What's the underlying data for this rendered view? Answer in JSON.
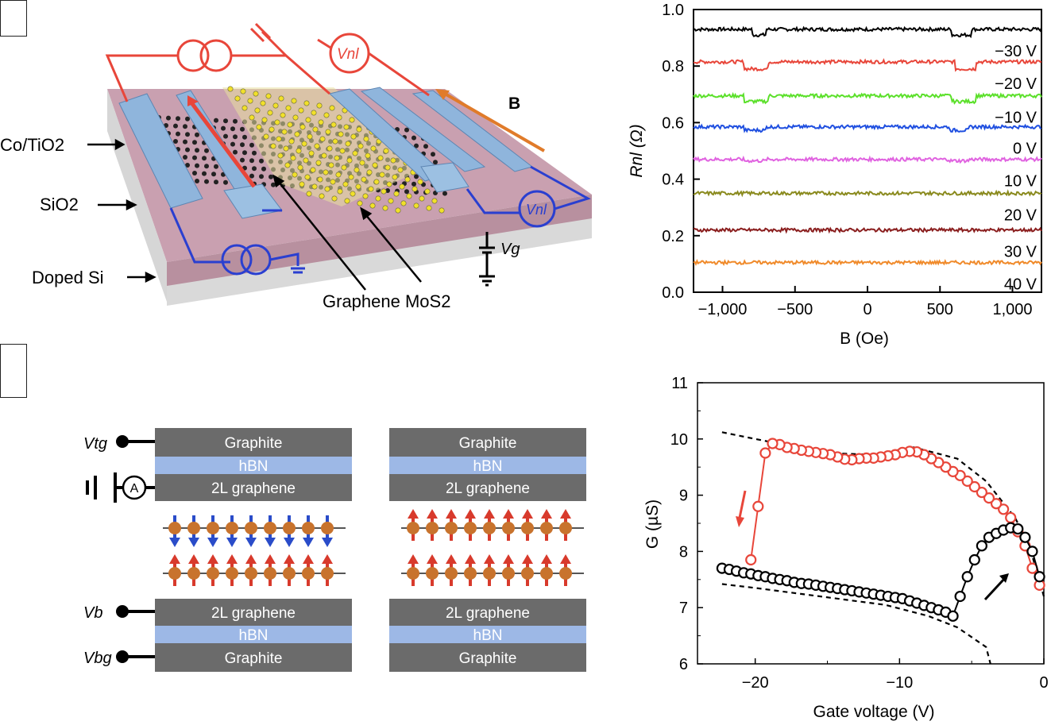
{
  "panel_a": {
    "labels": {
      "co_tio2": "Co/TiO2",
      "sio2": "SiO2",
      "doped_si": "Doped Si",
      "graphene_mos2": "Graphene MoS2",
      "b_field": "B",
      "vnl": "Vnl",
      "vg": "Vg"
    },
    "colors": {
      "red": "#e8463a",
      "blue": "#2a3fd0",
      "orange": "#e07b2a",
      "contact": "#8fb5dc",
      "substrate": "#c9a0b0"
    }
  },
  "panel_b": {
    "stack_labels": {
      "graphite_top": "Graphite",
      "hbn": "hBN",
      "graphene_2l": "2L graphene",
      "graphite_bottom": "Graphite"
    },
    "terminals": {
      "vtg": "Vtg",
      "vb": "Vb",
      "vbg": "Vbg",
      "ammeter": "A"
    },
    "colors": {
      "layer": "#6b6b6b",
      "hbn": "#9db8e6",
      "spin_up": "#d83a2c",
      "spin_down": "#2a4cc9",
      "ball": "#c8732d"
    }
  },
  "chart_data": [
    {
      "type": "line",
      "xlabel": "B (Oe)",
      "ylabel": "Rnl (Ω)",
      "xlim": [
        -1200,
        1200
      ],
      "ylim": [
        0.0,
        1.0
      ],
      "xticks": [
        -1000,
        -500,
        0,
        500,
        1000
      ],
      "xtick_labels": [
        "−1,000",
        "−500",
        "0",
        "500",
        "1,000"
      ],
      "yticks": [
        0.0,
        0.2,
        0.4,
        0.6,
        0.8,
        1.0
      ],
      "ytick_labels": [
        "0.0",
        "0.2",
        "0.4",
        "0.6",
        "0.8",
        "1.0"
      ],
      "series": [
        {
          "name": "−30 V",
          "color": "#000000",
          "base": 0.93,
          "dip": 0.02,
          "switch": [
            -800,
            -700,
            580,
            720
          ]
        },
        {
          "name": "−20 V",
          "color": "#e8463a",
          "base": 0.815,
          "dip": 0.025,
          "switch": [
            -850,
            -680,
            600,
            750
          ]
        },
        {
          "name": "−10 V",
          "color": "#5be02a",
          "base": 0.695,
          "dip": 0.02,
          "switch": [
            -850,
            -680,
            580,
            750
          ]
        },
        {
          "name": "0 V",
          "color": "#1f4fe0",
          "base": 0.585,
          "dip": 0.012,
          "switch": [
            -850,
            -700,
            560,
            700
          ]
        },
        {
          "name": "10 V",
          "color": "#e062e0",
          "base": 0.47,
          "dip": 0.005,
          "switch": [
            -850,
            -700,
            560,
            700
          ]
        },
        {
          "name": "20 V",
          "color": "#8a8a1e",
          "base": 0.35,
          "dip": 0.0,
          "switch": [
            -850,
            -700,
            560,
            700
          ]
        },
        {
          "name": "30 V",
          "color": "#8a1e1e",
          "base": 0.22,
          "dip": 0.0,
          "switch": [
            -850,
            -700,
            560,
            700
          ]
        },
        {
          "name": "40 V",
          "color": "#f08a2a",
          "base": 0.105,
          "dip": 0.0,
          "switch": [
            -850,
            -700,
            560,
            700
          ]
        }
      ]
    },
    {
      "type": "scatter",
      "xlabel": "Gate voltage (V)",
      "ylabel": "G (µS)",
      "xlim": [
        -24,
        0
      ],
      "ylim": [
        6,
        11
      ],
      "xticks": [
        -20,
        -10,
        0
      ],
      "xtick_labels": [
        "−20",
        "−10",
        "0"
      ],
      "yticks": [
        6,
        7,
        8,
        9,
        10,
        11
      ],
      "ytick_labels": [
        "6",
        "7",
        "8",
        "9",
        "10",
        "11"
      ],
      "series": [
        {
          "name": "sweep down",
          "color": "#e8463a",
          "x": [
            -0.3,
            -0.8,
            -1.3,
            -1.8,
            -2.3,
            -2.8,
            -3.3,
            -3.8,
            -4.3,
            -4.8,
            -5.3,
            -5.8,
            -6.3,
            -6.8,
            -7.3,
            -7.8,
            -8.3,
            -8.8,
            -9.3,
            -9.8,
            -10.3,
            -10.8,
            -11.3,
            -11.8,
            -12.3,
            -12.8,
            -13.3,
            -13.8,
            -14.3,
            -14.8,
            -15.3,
            -15.8,
            -16.3,
            -16.8,
            -17.3,
            -17.8,
            -18.3,
            -18.8,
            -19.3,
            -19.8,
            -20.3
          ],
          "y": [
            7.4,
            7.7,
            8.1,
            8.35,
            8.6,
            8.75,
            8.85,
            8.95,
            9.05,
            9.15,
            9.25,
            9.35,
            9.42,
            9.5,
            9.58,
            9.65,
            9.72,
            9.77,
            9.78,
            9.76,
            9.72,
            9.7,
            9.68,
            9.66,
            9.66,
            9.65,
            9.63,
            9.64,
            9.68,
            9.72,
            9.74,
            9.76,
            9.78,
            9.8,
            9.83,
            9.85,
            9.9,
            9.92,
            9.75,
            8.8,
            7.85
          ]
        },
        {
          "name": "sweep up",
          "color": "#000000",
          "x": [
            -22.3,
            -21.8,
            -21.3,
            -20.8,
            -20.3,
            -19.8,
            -19.3,
            -18.8,
            -18.3,
            -17.8,
            -17.3,
            -16.8,
            -16.3,
            -15.8,
            -15.3,
            -14.8,
            -14.3,
            -13.8,
            -13.3,
            -12.8,
            -12.3,
            -11.8,
            -11.3,
            -10.8,
            -10.3,
            -9.8,
            -9.3,
            -8.8,
            -8.3,
            -7.8,
            -7.3,
            -6.8,
            -6.3,
            -5.8,
            -5.3,
            -4.8,
            -4.3,
            -3.8,
            -3.3,
            -2.8,
            -2.3,
            -1.8,
            -1.3,
            -0.8,
            -0.3
          ],
          "y": [
            7.7,
            7.68,
            7.65,
            7.62,
            7.6,
            7.57,
            7.55,
            7.52,
            7.5,
            7.48,
            7.45,
            7.43,
            7.42,
            7.4,
            7.38,
            7.36,
            7.34,
            7.32,
            7.3,
            7.28,
            7.26,
            7.24,
            7.22,
            7.2,
            7.18,
            7.16,
            7.12,
            7.08,
            7.04,
            7.0,
            6.96,
            6.92,
            6.85,
            7.2,
            7.55,
            7.85,
            8.1,
            8.25,
            8.32,
            8.38,
            8.42,
            8.4,
            8.25,
            8.0,
            7.55
          ]
        }
      ],
      "annotations": {
        "arrow_red": "down",
        "arrow_black": "up"
      }
    }
  ]
}
